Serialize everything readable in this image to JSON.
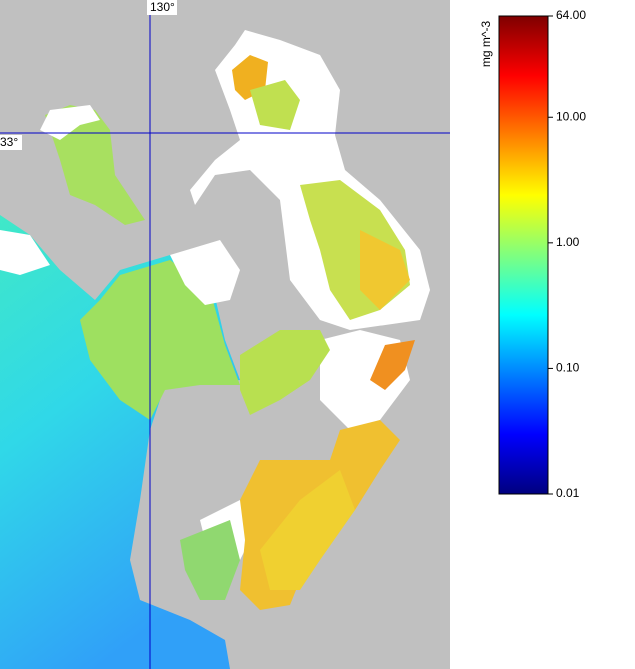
{
  "map": {
    "longitude_label": "130°",
    "latitude_label": "33°"
  },
  "colorbar": {
    "label": "mg m^-3",
    "scale": "log",
    "lim": [
      0.01,
      64
    ],
    "ticks": [
      {
        "value": 64,
        "label": "64.00"
      },
      {
        "value": 10,
        "label": "10.00"
      },
      {
        "value": 1,
        "label": "1.00"
      },
      {
        "value": 0.1,
        "label": "0.10"
      },
      {
        "value": 0.01,
        "label": "0.01"
      }
    ],
    "colormap": [
      "#00007f",
      "#0000ff",
      "#007fff",
      "#00ffff",
      "#7fff7f",
      "#ffff00",
      "#ff7f00",
      "#ff0000",
      "#7f0000"
    ]
  }
}
